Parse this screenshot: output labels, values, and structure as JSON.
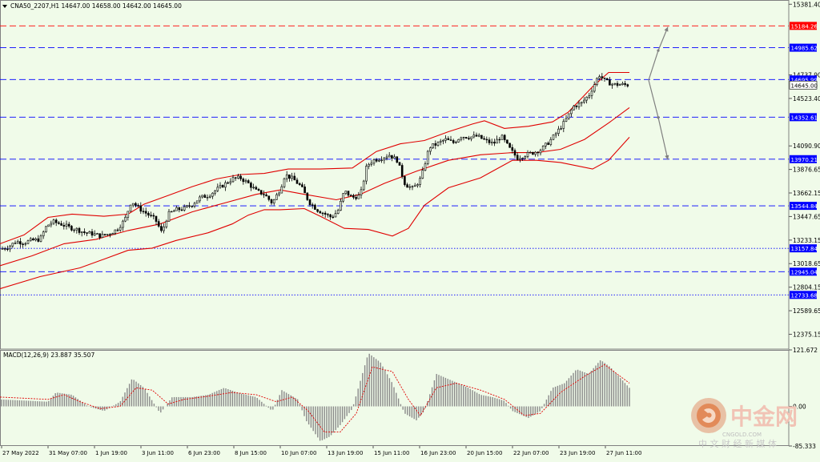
{
  "chart_data": [
    {
      "type": "candlestick",
      "symbol_header": "CNA50_2207,H1  14647.00 14658.00 14642.00 14645.00",
      "ylim": [
        12240,
        15420
      ],
      "y_ticks": [
        "15381.40",
        "14737.90",
        "14523.40",
        "14090.90",
        "13876.65",
        "13662.15",
        "13447.65",
        "13233.15",
        "13018.65",
        "12804.15",
        "12589.65",
        "12375.15"
      ],
      "x_ticks": [
        "27 May 2022",
        "31 May 07:00",
        "1 Jun 19:00",
        "3 Jun 11:00",
        "6 Jun 23:00",
        "8 Jun 15:00",
        "10 Jun 07:00",
        "13 Jun 19:00",
        "15 Jun 11:00",
        "16 Jun 23:00",
        "20 Jun 15:00",
        "22 Jun 07:00",
        "23 Jun 19:00",
        "27 Jun 11:00"
      ],
      "close_path": [
        [
          0,
          13150
        ],
        [
          10,
          13170
        ],
        [
          20,
          13220
        ],
        [
          30,
          13210
        ],
        [
          40,
          13230
        ],
        [
          50,
          13240
        ],
        [
          58,
          13360
        ],
        [
          66,
          13400
        ],
        [
          76,
          13380
        ],
        [
          86,
          13350
        ],
        [
          96,
          13330
        ],
        [
          106,
          13300
        ],
        [
          116,
          13290
        ],
        [
          126,
          13270
        ],
        [
          136,
          13290
        ],
        [
          146,
          13330
        ],
        [
          156,
          13420
        ],
        [
          164,
          13590
        ],
        [
          174,
          13520
        ],
        [
          184,
          13470
        ],
        [
          194,
          13420
        ],
        [
          202,
          13300
        ],
        [
          210,
          13470
        ],
        [
          220,
          13510
        ],
        [
          230,
          13520
        ],
        [
          240,
          13560
        ],
        [
          250,
          13620
        ],
        [
          260,
          13640
        ],
        [
          270,
          13690
        ],
        [
          280,
          13740
        ],
        [
          290,
          13790
        ],
        [
          300,
          13800
        ],
        [
          310,
          13750
        ],
        [
          320,
          13680
        ],
        [
          330,
          13650
        ],
        [
          340,
          13570
        ],
        [
          350,
          13700
        ],
        [
          356,
          13830
        ],
        [
          366,
          13790
        ],
        [
          376,
          13720
        ],
        [
          386,
          13580
        ],
        [
          396,
          13510
        ],
        [
          406,
          13470
        ],
        [
          414,
          13440
        ],
        [
          422,
          13500
        ],
        [
          430,
          13680
        ],
        [
          440,
          13620
        ],
        [
          450,
          13640
        ],
        [
          458,
          13910
        ],
        [
          466,
          13960
        ],
        [
          476,
          13980
        ],
        [
          486,
          14010
        ],
        [
          496,
          13960
        ],
        [
          506,
          13740
        ],
        [
          516,
          13700
        ],
        [
          526,
          13800
        ],
        [
          536,
          14080
        ],
        [
          546,
          14110
        ],
        [
          556,
          14150
        ],
        [
          566,
          14120
        ],
        [
          576,
          14180
        ],
        [
          586,
          14170
        ],
        [
          596,
          14180
        ],
        [
          606,
          14140
        ],
        [
          616,
          14110
        ],
        [
          626,
          14180
        ],
        [
          636,
          14070
        ],
        [
          646,
          13980
        ],
        [
          656,
          14010
        ],
        [
          666,
          14030
        ],
        [
          676,
          14060
        ],
        [
          686,
          14130
        ],
        [
          696,
          14220
        ],
        [
          706,
          14320
        ],
        [
          716,
          14450
        ],
        [
          726,
          14480
        ],
        [
          736,
          14560
        ],
        [
          748,
          14740
        ],
        [
          756,
          14680
        ],
        [
          766,
          14650
        ],
        [
          776,
          14650
        ],
        [
          786,
          14645
        ]
      ],
      "bollinger": {
        "upper": [
          [
            0,
            13200
          ],
          [
            30,
            13280
          ],
          [
            60,
            13440
          ],
          [
            90,
            13470
          ],
          [
            130,
            13450
          ],
          [
            160,
            13470
          ],
          [
            180,
            13560
          ],
          [
            210,
            13640
          ],
          [
            240,
            13720
          ],
          [
            270,
            13790
          ],
          [
            300,
            13830
          ],
          [
            330,
            13840
          ],
          [
            360,
            13880
          ],
          [
            400,
            13880
          ],
          [
            440,
            13890
          ],
          [
            470,
            14040
          ],
          [
            500,
            14110
          ],
          [
            530,
            14140
          ],
          [
            560,
            14220
          ],
          [
            590,
            14290
          ],
          [
            605,
            14320
          ],
          [
            630,
            14250
          ],
          [
            660,
            14270
          ],
          [
            690,
            14310
          ],
          [
            710,
            14400
          ],
          [
            740,
            14630
          ],
          [
            760,
            14760
          ],
          [
            786,
            14760
          ]
        ],
        "middle": [
          [
            0,
            13000
          ],
          [
            40,
            13090
          ],
          [
            80,
            13200
          ],
          [
            120,
            13240
          ],
          [
            160,
            13320
          ],
          [
            200,
            13380
          ],
          [
            240,
            13490
          ],
          [
            280,
            13570
          ],
          [
            320,
            13650
          ],
          [
            350,
            13690
          ],
          [
            380,
            13650
          ],
          [
            420,
            13600
          ],
          [
            450,
            13650
          ],
          [
            480,
            13750
          ],
          [
            520,
            13860
          ],
          [
            560,
            13960
          ],
          [
            600,
            14010
          ],
          [
            640,
            14030
          ],
          [
            670,
            14030
          ],
          [
            700,
            14060
          ],
          [
            730,
            14150
          ],
          [
            760,
            14300
          ],
          [
            786,
            14440
          ]
        ],
        "lower": [
          [
            0,
            12790
          ],
          [
            50,
            12900
          ],
          [
            100,
            12980
          ],
          [
            130,
            13060
          ],
          [
            160,
            13140
          ],
          [
            190,
            13160
          ],
          [
            220,
            13230
          ],
          [
            260,
            13300
          ],
          [
            290,
            13380
          ],
          [
            310,
            13460
          ],
          [
            330,
            13510
          ],
          [
            350,
            13510
          ],
          [
            380,
            13520
          ],
          [
            400,
            13450
          ],
          [
            430,
            13340
          ],
          [
            460,
            13330
          ],
          [
            490,
            13270
          ],
          [
            510,
            13340
          ],
          [
            530,
            13550
          ],
          [
            560,
            13710
          ],
          [
            600,
            13800
          ],
          [
            620,
            13880
          ],
          [
            640,
            13960
          ],
          [
            670,
            13960
          ],
          [
            700,
            13940
          ],
          [
            740,
            13880
          ],
          [
            760,
            13960
          ],
          [
            786,
            14170
          ]
        ]
      },
      "h_levels": [
        {
          "label": "15184.26",
          "value": 15184.26,
          "color": "#ff0000",
          "style": "dash"
        },
        {
          "label": "14985.62",
          "value": 14985.62,
          "color": "#0000ff",
          "style": "dash"
        },
        {
          "label": "14695.99",
          "value": 14695.99,
          "color": "#0000ff",
          "style": "dash"
        },
        {
          "label": "14352.61",
          "value": 14352.61,
          "color": "#0000ff",
          "style": "dash"
        },
        {
          "label": "13970.21",
          "value": 13970.21,
          "color": "#0000ff",
          "style": "dash"
        },
        {
          "label": "13544.84",
          "value": 13544.84,
          "color": "#0000ff",
          "style": "dash"
        },
        {
          "label": "13157.84",
          "value": 13157.84,
          "color": "#0000ff",
          "style": "dot"
        },
        {
          "label": "12945.04",
          "value": 12945.04,
          "color": "#0000ff",
          "style": "dash"
        },
        {
          "label": "12733.68",
          "value": 12733.68,
          "color": "#0000ff",
          "style": "dot"
        }
      ],
      "current_price_label": "14645.00",
      "projections": [
        [
          [
            810,
            14690
          ],
          [
            822,
            14960
          ],
          [
            834,
            15175
          ]
        ],
        [
          [
            810,
            14690
          ],
          [
            822,
            14350
          ],
          [
            834,
            13965
          ]
        ]
      ]
    },
    {
      "type": "bar",
      "indicator_label": "MACD(12,26,9) 23.887 35.507",
      "ylim": [
        -85.333,
        121.672
      ],
      "y_ticks": [
        "121.672",
        "0.00",
        "-85.333"
      ],
      "histogram": [
        [
          0,
          15
        ],
        [
          60,
          10
        ],
        [
          70,
          30
        ],
        [
          90,
          25
        ],
        [
          110,
          0
        ],
        [
          130,
          -10
        ],
        [
          150,
          10
        ],
        [
          165,
          60
        ],
        [
          180,
          40
        ],
        [
          200,
          -15
        ],
        [
          215,
          20
        ],
        [
          240,
          20
        ],
        [
          260,
          25
        ],
        [
          280,
          40
        ],
        [
          300,
          28
        ],
        [
          320,
          20
        ],
        [
          340,
          -10
        ],
        [
          352,
          35
        ],
        [
          372,
          15
        ],
        [
          382,
          -30
        ],
        [
          400,
          -75
        ],
        [
          412,
          -65
        ],
        [
          425,
          -40
        ],
        [
          440,
          -5
        ],
        [
          460,
          115
        ],
        [
          475,
          95
        ],
        [
          490,
          50
        ],
        [
          505,
          -15
        ],
        [
          520,
          -30
        ],
        [
          530,
          -10
        ],
        [
          545,
          70
        ],
        [
          565,
          55
        ],
        [
          585,
          40
        ],
        [
          600,
          25
        ],
        [
          615,
          20
        ],
        [
          630,
          12
        ],
        [
          640,
          -10
        ],
        [
          660,
          -25
        ],
        [
          675,
          -10
        ],
        [
          690,
          40
        ],
        [
          705,
          50
        ],
        [
          720,
          80
        ],
        [
          735,
          70
        ],
        [
          750,
          100
        ],
        [
          762,
          85
        ],
        [
          786,
          40
        ]
      ],
      "signal": [
        [
          0,
          20
        ],
        [
          60,
          15
        ],
        [
          80,
          25
        ],
        [
          100,
          10
        ],
        [
          125,
          -5
        ],
        [
          150,
          0
        ],
        [
          170,
          40
        ],
        [
          190,
          35
        ],
        [
          210,
          5
        ],
        [
          230,
          15
        ],
        [
          260,
          22
        ],
        [
          290,
          30
        ],
        [
          320,
          25
        ],
        [
          345,
          10
        ],
        [
          365,
          20
        ],
        [
          385,
          -10
        ],
        [
          405,
          -55
        ],
        [
          425,
          -55
        ],
        [
          445,
          -15
        ],
        [
          465,
          85
        ],
        [
          490,
          75
        ],
        [
          510,
          15
        ],
        [
          525,
          -20
        ],
        [
          545,
          40
        ],
        [
          570,
          50
        ],
        [
          600,
          35
        ],
        [
          630,
          15
        ],
        [
          655,
          -20
        ],
        [
          675,
          -15
        ],
        [
          700,
          30
        ],
        [
          730,
          65
        ],
        [
          755,
          90
        ],
        [
          786,
          50
        ]
      ]
    }
  ],
  "watermark": {
    "logo": "中金网",
    "url": "CNGOLD.COM",
    "subtitle": "中 文 财 经 新 媒 体"
  }
}
